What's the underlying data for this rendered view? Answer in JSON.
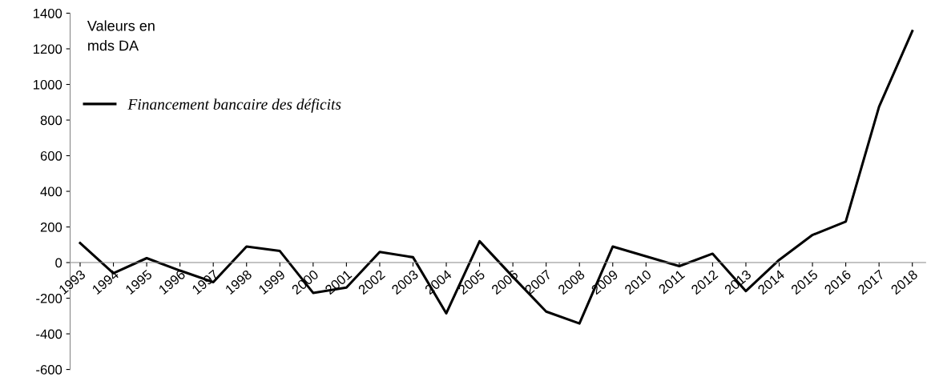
{
  "chart_data": {
    "type": "line",
    "categories": [
      "1993",
      "1994",
      "1995",
      "1996",
      "1997",
      "1998",
      "1999",
      "2000",
      "2001",
      "2002",
      "2003",
      "2004",
      "2005",
      "2006",
      "2007",
      "2008",
      "2009",
      "2010",
      "2011",
      "2012",
      "2013",
      "2014",
      "2015",
      "2016",
      "2017",
      "2018"
    ],
    "series": [
      {
        "name": "Financement bancaire des déficits",
        "color": "#000000",
        "values": [
          110,
          -60,
          25,
          -45,
          -110,
          90,
          65,
          -170,
          -140,
          60,
          30,
          -285,
          120,
          -80,
          -275,
          -342,
          90,
          35,
          -20,
          50,
          -160,
          15,
          155,
          230,
          875,
          1300
        ]
      }
    ],
    "ylim": [
      -600,
      1400
    ],
    "yticks": [
      -600,
      -400,
      -200,
      0,
      200,
      400,
      600,
      800,
      1000,
      1200,
      1400
    ],
    "annotations": [
      "Valeurs en\nmds DA"
    ],
    "legend": "top left",
    "grid": false,
    "marker": "none",
    "line_style": "solid"
  }
}
